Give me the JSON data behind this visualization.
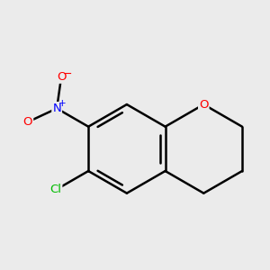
{
  "background_color": "#ebebeb",
  "bond_color": "#000000",
  "bond_width": 1.8,
  "atom_colors": {
    "O": "#ff0000",
    "N": "#0000ff",
    "Cl": "#00bb00"
  },
  "figsize": [
    3.0,
    3.0
  ],
  "dpi": 100
}
